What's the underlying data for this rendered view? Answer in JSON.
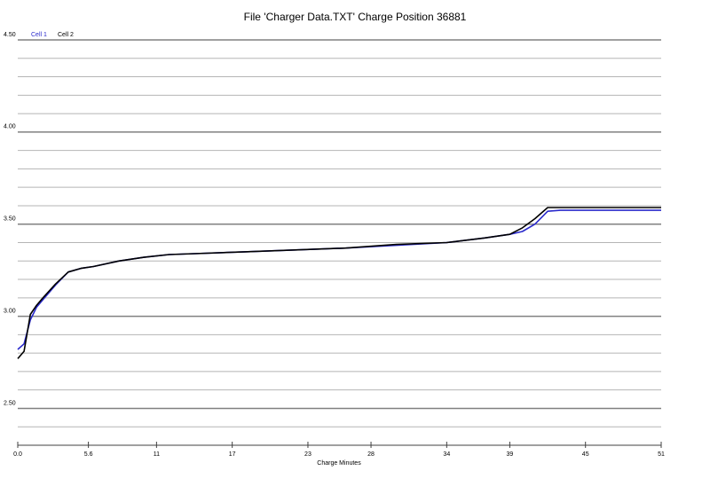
{
  "chart_data": {
    "type": "line",
    "title": "File 'Charger Data.TXT'  Charge Position 36881",
    "x_label": "Charge Minutes",
    "x": [
      0,
      0.5,
      1,
      1.5,
      2,
      3,
      4,
      5,
      6,
      8,
      10,
      12,
      14,
      18,
      22,
      26,
      30,
      34,
      37,
      39,
      40,
      41,
      42,
      43,
      45,
      47,
      49,
      51
    ],
    "series": [
      {
        "name": "Cell 1",
        "color": "#2a2acc",
        "values": [
          2.82,
          2.85,
          2.98,
          3.05,
          3.09,
          3.17,
          3.24,
          3.26,
          3.27,
          3.3,
          3.32,
          3.335,
          3.34,
          3.35,
          3.36,
          3.37,
          3.385,
          3.4,
          3.425,
          3.445,
          3.46,
          3.5,
          3.57,
          3.575,
          3.575,
          3.575,
          3.575,
          3.575
        ]
      },
      {
        "name": "Cell 2",
        "color": "#000000",
        "values": [
          2.77,
          2.81,
          3.01,
          3.06,
          3.1,
          3.175,
          3.24,
          3.26,
          3.27,
          3.3,
          3.32,
          3.335,
          3.34,
          3.35,
          3.36,
          3.37,
          3.39,
          3.4,
          3.425,
          3.445,
          3.48,
          3.53,
          3.59,
          3.59,
          3.59,
          3.59,
          3.59,
          3.59
        ]
      }
    ],
    "xlim": [
      0,
      51
    ],
    "xticks": [
      {
        "value": 0,
        "label": "0.0"
      },
      5.6,
      11,
      17,
      23,
      28,
      34,
      39,
      45,
      51
    ],
    "ylim": [
      2.3,
      4.5
    ],
    "yticks": [
      {
        "value": 2.5,
        "label": "2.50"
      },
      {
        "value": 3,
        "label": "3.00"
      },
      {
        "value": 3.5,
        "label": "3.50"
      },
      {
        "value": 4,
        "label": "4.00"
      },
      {
        "value": 4.5,
        "label": "4.50"
      }
    ],
    "minor_grid": [
      2.4,
      2.6,
      2.7,
      2.8,
      2.9,
      3.1,
      3.2,
      3.3,
      3.4,
      3.6,
      3.7,
      3.8,
      3.9,
      4.1,
      4.2,
      4.3,
      4.4
    ],
    "grid": true,
    "legend": "top-left"
  }
}
